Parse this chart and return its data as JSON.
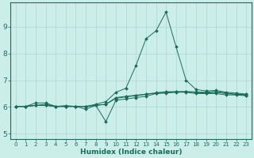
{
  "title": "",
  "xlabel": "Humidex (Indice chaleur)",
  "ylabel": "",
  "bg_color": "#cceee8",
  "line_color": "#1a6b5a",
  "grid_color": "#aad8d0",
  "xlim": [
    -0.5,
    23.5
  ],
  "ylim": [
    4.8,
    9.9
  ],
  "yticks": [
    5,
    6,
    7,
    8,
    9
  ],
  "xticks": [
    0,
    1,
    2,
    3,
    4,
    5,
    6,
    7,
    8,
    9,
    10,
    11,
    12,
    13,
    14,
    15,
    16,
    17,
    18,
    19,
    20,
    21,
    22,
    23
  ],
  "lines": [
    {
      "x": [
        0,
        1,
        2,
        3,
        4,
        5,
        6,
        7,
        8,
        9,
        10,
        11,
        12,
        13,
        14,
        15,
        16,
        17,
        18,
        19,
        20,
        21,
        22,
        23
      ],
      "y": [
        6.02,
        6.02,
        6.15,
        6.15,
        6.02,
        6.05,
        6.02,
        6.02,
        6.1,
        6.2,
        6.55,
        6.7,
        7.55,
        8.55,
        8.85,
        9.55,
        8.25,
        7.0,
        6.65,
        6.6,
        6.62,
        6.55,
        6.52,
        6.48
      ]
    },
    {
      "x": [
        0,
        1,
        2,
        3,
        4,
        5,
        6,
        7,
        8,
        9,
        10,
        11,
        12,
        13,
        14,
        15,
        16,
        17,
        18,
        19,
        20,
        21,
        22,
        23
      ],
      "y": [
        6.02,
        6.02,
        6.06,
        6.06,
        6.02,
        6.02,
        6.02,
        6.02,
        6.06,
        6.1,
        6.32,
        6.38,
        6.42,
        6.47,
        6.52,
        6.55,
        6.57,
        6.58,
        6.56,
        6.55,
        6.58,
        6.52,
        6.47,
        6.47
      ]
    },
    {
      "x": [
        0,
        1,
        2,
        3,
        4,
        5,
        6,
        7,
        8,
        9,
        10,
        11,
        12,
        13,
        14,
        15,
        16,
        17,
        18,
        19,
        20,
        21,
        22,
        23
      ],
      "y": [
        6.02,
        6.02,
        6.06,
        6.1,
        6.02,
        6.02,
        6.02,
        5.92,
        6.06,
        5.45,
        6.25,
        6.3,
        6.35,
        6.4,
        6.5,
        6.52,
        6.55,
        6.55,
        6.5,
        6.5,
        6.5,
        6.45,
        6.45,
        6.42
      ]
    },
    {
      "x": [
        0,
        1,
        2,
        3,
        4,
        5,
        6,
        7,
        8,
        9,
        10,
        11,
        12,
        13,
        14,
        15,
        16,
        17,
        18,
        19,
        20,
        21,
        22,
        23
      ],
      "y": [
        6.02,
        6.02,
        6.06,
        6.06,
        6.02,
        6.02,
        6.02,
        6.02,
        6.06,
        6.1,
        6.35,
        6.4,
        6.44,
        6.48,
        6.53,
        6.57,
        6.57,
        6.56,
        6.54,
        6.52,
        6.55,
        6.5,
        6.47,
        6.44
      ]
    }
  ]
}
